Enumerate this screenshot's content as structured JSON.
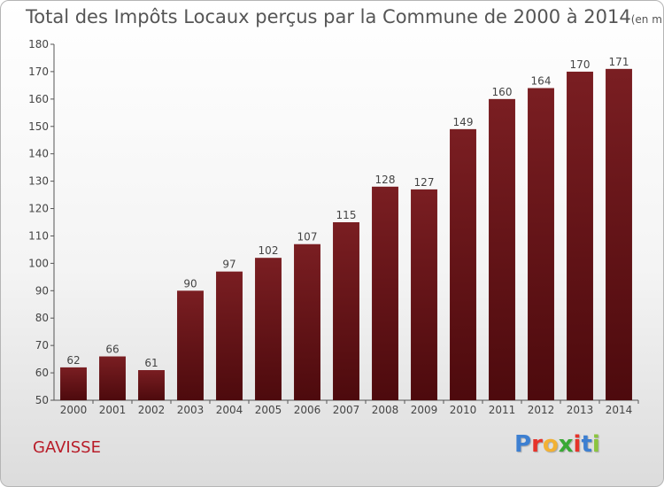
{
  "header": {
    "title": "Total des Impôts Locaux perçus par la Commune de 2000 à 2014",
    "unit": "(en milliers d'€)"
  },
  "footer": {
    "commune": "GAVISSE",
    "brand": "Proxiti",
    "brand_colors": [
      "#3d7fd1",
      "#e6332a",
      "#f2b134",
      "#39a935",
      "#e6332a",
      "#3d7fd1",
      "#8bc53f"
    ]
  },
  "colors": {
    "bar": "#7a1e22",
    "bar_dark": "#4d0a0d",
    "axis": "#555555",
    "grid": "#c8c8c8"
  },
  "chart_data": {
    "type": "bar",
    "categories": [
      "2000",
      "2001",
      "2002",
      "2003",
      "2004",
      "2005",
      "2006",
      "2007",
      "2008",
      "2009",
      "2010",
      "2011",
      "2012",
      "2013",
      "2014"
    ],
    "values": [
      62,
      66,
      61,
      90,
      97,
      102,
      107,
      115,
      128,
      127,
      149,
      160,
      164,
      170,
      171
    ],
    "title": "Total des Impôts Locaux perçus par la Commune de 2000 à 2014",
    "xlabel": "",
    "ylabel": "",
    "ylim": [
      50,
      180
    ],
    "yticks": [
      50,
      60,
      70,
      80,
      90,
      100,
      110,
      120,
      130,
      140,
      150,
      160,
      170,
      180
    ],
    "grid": false,
    "data_labels": true
  }
}
